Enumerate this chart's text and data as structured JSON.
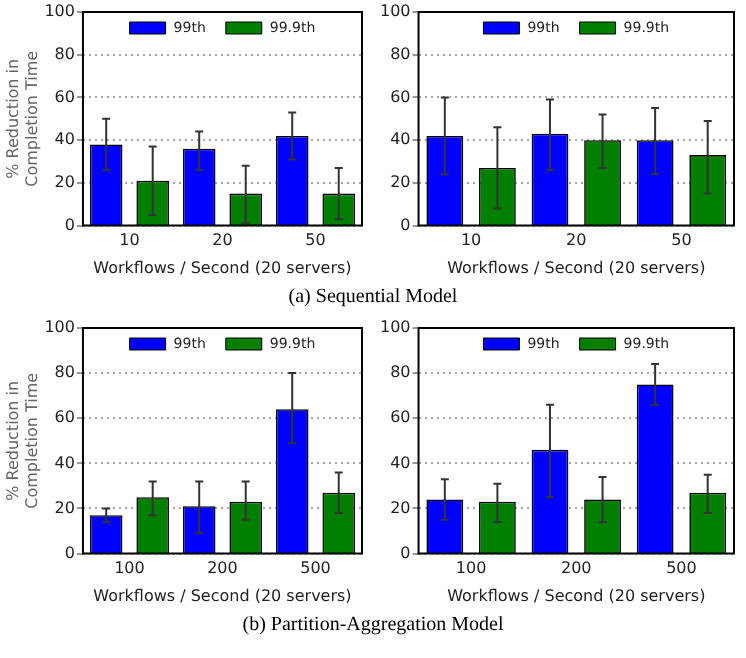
{
  "chart_data": [
    {
      "type": "bar",
      "ylabel": "% Reduction in\nCompletion Time",
      "xlabel": "Workflows / Second (20 servers)",
      "categories": [
        "10",
        "20",
        "50"
      ],
      "series": [
        {
          "name": "99th",
          "color": "#0000ff",
          "values": [
            38,
            36,
            42
          ],
          "errors": [
            [
              26,
              50
            ],
            [
              26,
              44
            ],
            [
              31,
              53
            ]
          ]
        },
        {
          "name": "99.9th",
          "color": "#007f00",
          "values": [
            21,
            15,
            15
          ],
          "errors": [
            [
              5,
              37
            ],
            [
              1,
              28
            ],
            [
              3,
              27
            ]
          ]
        }
      ],
      "ylim": [
        0,
        100
      ],
      "yticks": [
        0,
        20,
        40,
        60,
        80,
        100
      ],
      "grid": "y",
      "legend": "top",
      "annotations": [
        "(a) Sequential Model"
      ]
    },
    {
      "type": "bar",
      "xlabel": "Workflows / Second (20 servers)",
      "categories": [
        "10",
        "20",
        "50"
      ],
      "series": [
        {
          "name": "99th",
          "color": "#0000ff",
          "values": [
            42,
            43,
            40
          ],
          "errors": [
            [
              24,
              60
            ],
            [
              26,
              59
            ],
            [
              24,
              55
            ]
          ]
        },
        {
          "name": "99.9th",
          "color": "#007f00",
          "values": [
            27,
            40,
            33
          ],
          "errors": [
            [
              8,
              46
            ],
            [
              27,
              52
            ],
            [
              15,
              49
            ]
          ]
        }
      ],
      "ylim": [
        0,
        100
      ],
      "yticks": [
        0,
        20,
        40,
        60,
        80,
        100
      ],
      "grid": "y",
      "legend": "top"
    },
    {
      "type": "bar",
      "ylabel": "% Reduction in\nCompletion Time",
      "xlabel": "Workflows / Second (20 servers)",
      "categories": [
        "100",
        "200",
        "500"
      ],
      "series": [
        {
          "name": "99th",
          "color": "#0000ff",
          "values": [
            17,
            21,
            64
          ],
          "errors": [
            [
              14,
              20
            ],
            [
              9,
              32
            ],
            [
              49,
              80
            ]
          ]
        },
        {
          "name": "99.9th",
          "color": "#007f00",
          "values": [
            25,
            23,
            27
          ],
          "errors": [
            [
              17,
              32
            ],
            [
              15,
              32
            ],
            [
              18,
              36
            ]
          ]
        }
      ],
      "ylim": [
        0,
        100
      ],
      "yticks": [
        0,
        20,
        40,
        60,
        80,
        100
      ],
      "grid": "y",
      "legend": "top",
      "annotations": [
        "(b) Partition-Aggregation Model"
      ]
    },
    {
      "type": "bar",
      "xlabel": "Workflows / Second (20 servers)",
      "categories": [
        "100",
        "200",
        "500"
      ],
      "series": [
        {
          "name": "99th",
          "color": "#0000ff",
          "values": [
            24,
            46,
            75
          ],
          "errors": [
            [
              15,
              33
            ],
            [
              25,
              66
            ],
            [
              66,
              84
            ]
          ]
        },
        {
          "name": "99.9th",
          "color": "#007f00",
          "values": [
            23,
            24,
            27
          ],
          "errors": [
            [
              14,
              31
            ],
            [
              14,
              34
            ],
            [
              18,
              35
            ]
          ]
        }
      ],
      "ylim": [
        0,
        100
      ],
      "yticks": [
        0,
        20,
        40,
        60,
        80,
        100
      ],
      "grid": "y",
      "legend": "top"
    }
  ]
}
